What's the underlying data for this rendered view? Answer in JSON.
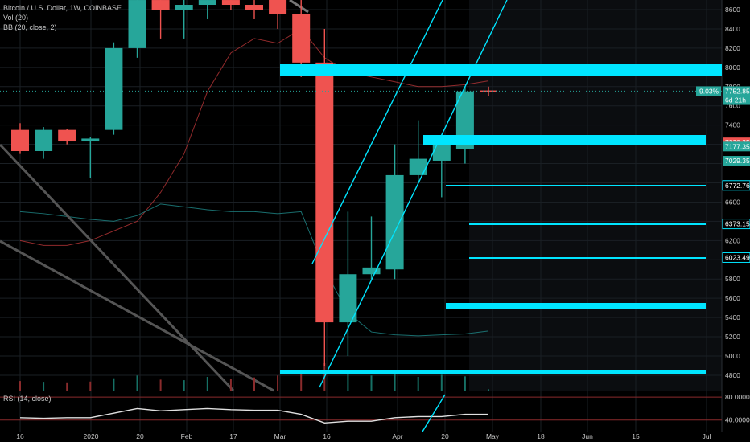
{
  "legend": {
    "symbol": "Bitcoin / U.S. Dollar, 1W, COINBASE",
    "vol": "Vol (20)",
    "bb": "BB (20, close, 2)",
    "rsi": "RSI (14, close)"
  },
  "colors": {
    "bg": "#000000",
    "up": "#26a69a",
    "down": "#ef5350",
    "cyan": "#00e5ff",
    "grid": "#1a1f24",
    "text": "#c8c8c8"
  },
  "chart_data": {
    "type": "candlestick",
    "ylim": [
      4600,
      8800
    ],
    "y_ticks": [
      8600,
      8400,
      8200,
      8000,
      7800,
      7600,
      7400,
      7200,
      7000,
      6800,
      6600,
      6400,
      6200,
      6000,
      5800,
      5600,
      5400,
      5200,
      5000,
      4800
    ],
    "x_ticks": [
      "16",
      "2020",
      "20",
      "Feb",
      "17",
      "Mar",
      "16",
      "Apr",
      "20",
      "May",
      "18",
      "Jun",
      "15",
      "Jul"
    ],
    "candles": [
      {
        "o": 7350,
        "h": 7420,
        "l": 7100,
        "c": 7130
      },
      {
        "o": 7130,
        "h": 7380,
        "l": 7050,
        "c": 7350
      },
      {
        "o": 7350,
        "h": 7360,
        "l": 7200,
        "c": 7230
      },
      {
        "o": 7230,
        "h": 7280,
        "l": 6850,
        "c": 7260
      },
      {
        "o": 7350,
        "h": 8260,
        "l": 7300,
        "c": 8200
      },
      {
        "o": 8200,
        "h": 8900,
        "l": 8100,
        "c": 8700
      },
      {
        "o": 8700,
        "h": 8800,
        "l": 8300,
        "c": 8600
      },
      {
        "o": 8600,
        "h": 8900,
        "l": 8300,
        "c": 8650
      },
      {
        "o": 8650,
        "h": 8750,
        "l": 8500,
        "c": 8700
      },
      {
        "o": 8700,
        "h": 8800,
        "l": 8600,
        "c": 8650
      },
      {
        "o": 8650,
        "h": 8700,
        "l": 8500,
        "c": 8600
      },
      {
        "o": 8750,
        "h": 8850,
        "l": 8400,
        "c": 8550
      },
      {
        "o": 8550,
        "h": 8700,
        "l": 7900,
        "c": 8050
      },
      {
        "o": 8050,
        "h": 8400,
        "l": 4900,
        "c": 5350
      },
      {
        "o": 5350,
        "h": 6500,
        "l": 5000,
        "c": 5850
      },
      {
        "o": 5850,
        "h": 6450,
        "l": 5800,
        "c": 5920
      },
      {
        "o": 5900,
        "h": 7200,
        "l": 5800,
        "c": 6880
      },
      {
        "o": 6880,
        "h": 7450,
        "l": 6800,
        "c": 7050
      },
      {
        "o": 7030,
        "h": 7300,
        "l": 6650,
        "c": 7200
      },
      {
        "o": 7150,
        "h": 7800,
        "l": 7000,
        "c": 7750
      },
      {
        "o": 7760,
        "h": 7800,
        "l": 7700,
        "c": 7740
      }
    ],
    "volume": [
      0.35,
      0.32,
      0.3,
      0.33,
      0.45,
      0.55,
      0.4,
      0.38,
      0.5,
      0.42,
      0.48,
      0.55,
      0.6,
      1.0,
      0.7,
      0.55,
      0.65,
      0.5,
      0.58,
      0.52,
      0.05
    ],
    "volume_down": [
      true,
      false,
      true,
      true,
      false,
      false,
      true,
      false,
      false,
      true,
      true,
      true,
      true,
      true,
      false,
      false,
      false,
      false,
      false,
      false,
      false
    ],
    "horizontal_zones": [
      {
        "price": 7960,
        "width": 70,
        "start_candle": 11.5
      },
      {
        "price": 7260,
        "width": 55,
        "start_candle": 17.5
      },
      {
        "price": 6772.76,
        "width": 14,
        "start_candle": 19
      },
      {
        "price": 6373.15,
        "width": 14,
        "start_candle": 19.9
      },
      {
        "price": 6023.49,
        "width": 14,
        "start_candle": 19.9
      },
      {
        "price": 5530,
        "width": 50,
        "start_candle": 19
      },
      {
        "price": 4840,
        "width": 36,
        "start_candle": 11.5
      }
    ],
    "price_badges": [
      {
        "label": "7752.85",
        "price": 7752.85,
        "color": "#26a69a"
      },
      {
        "label": "6d 21h",
        "price": 7660,
        "color": "#26a69a"
      },
      {
        "label": "7220.35",
        "price": 7220.35,
        "color": "#ef5350"
      },
      {
        "label": "7177.35",
        "price": 7177.35,
        "color": "#26a69a"
      },
      {
        "label": "7029.35",
        "price": 7029.35,
        "color": "#26a69a"
      },
      {
        "label": "6772.76",
        "price": 6772.76,
        "color": "#00e5ff",
        "outlined": true
      },
      {
        "label": "6373.15",
        "price": 6373.15,
        "color": "#00e5ff",
        "outlined": true
      },
      {
        "label": "6023.49",
        "price": 6023.49,
        "color": "#00e5ff",
        "outlined": true
      }
    ],
    "pct_badge": "9.03%",
    "rsi": {
      "ylim": [
        20,
        90
      ],
      "ticks": [
        80,
        40
      ],
      "tick_labels": [
        "80.0000",
        "40.0000"
      ],
      "values": [
        44,
        43,
        44,
        44,
        52,
        60,
        56,
        58,
        60,
        58,
        57,
        57,
        50,
        35,
        38,
        38,
        44,
        46,
        46,
        50,
        50
      ]
    }
  }
}
